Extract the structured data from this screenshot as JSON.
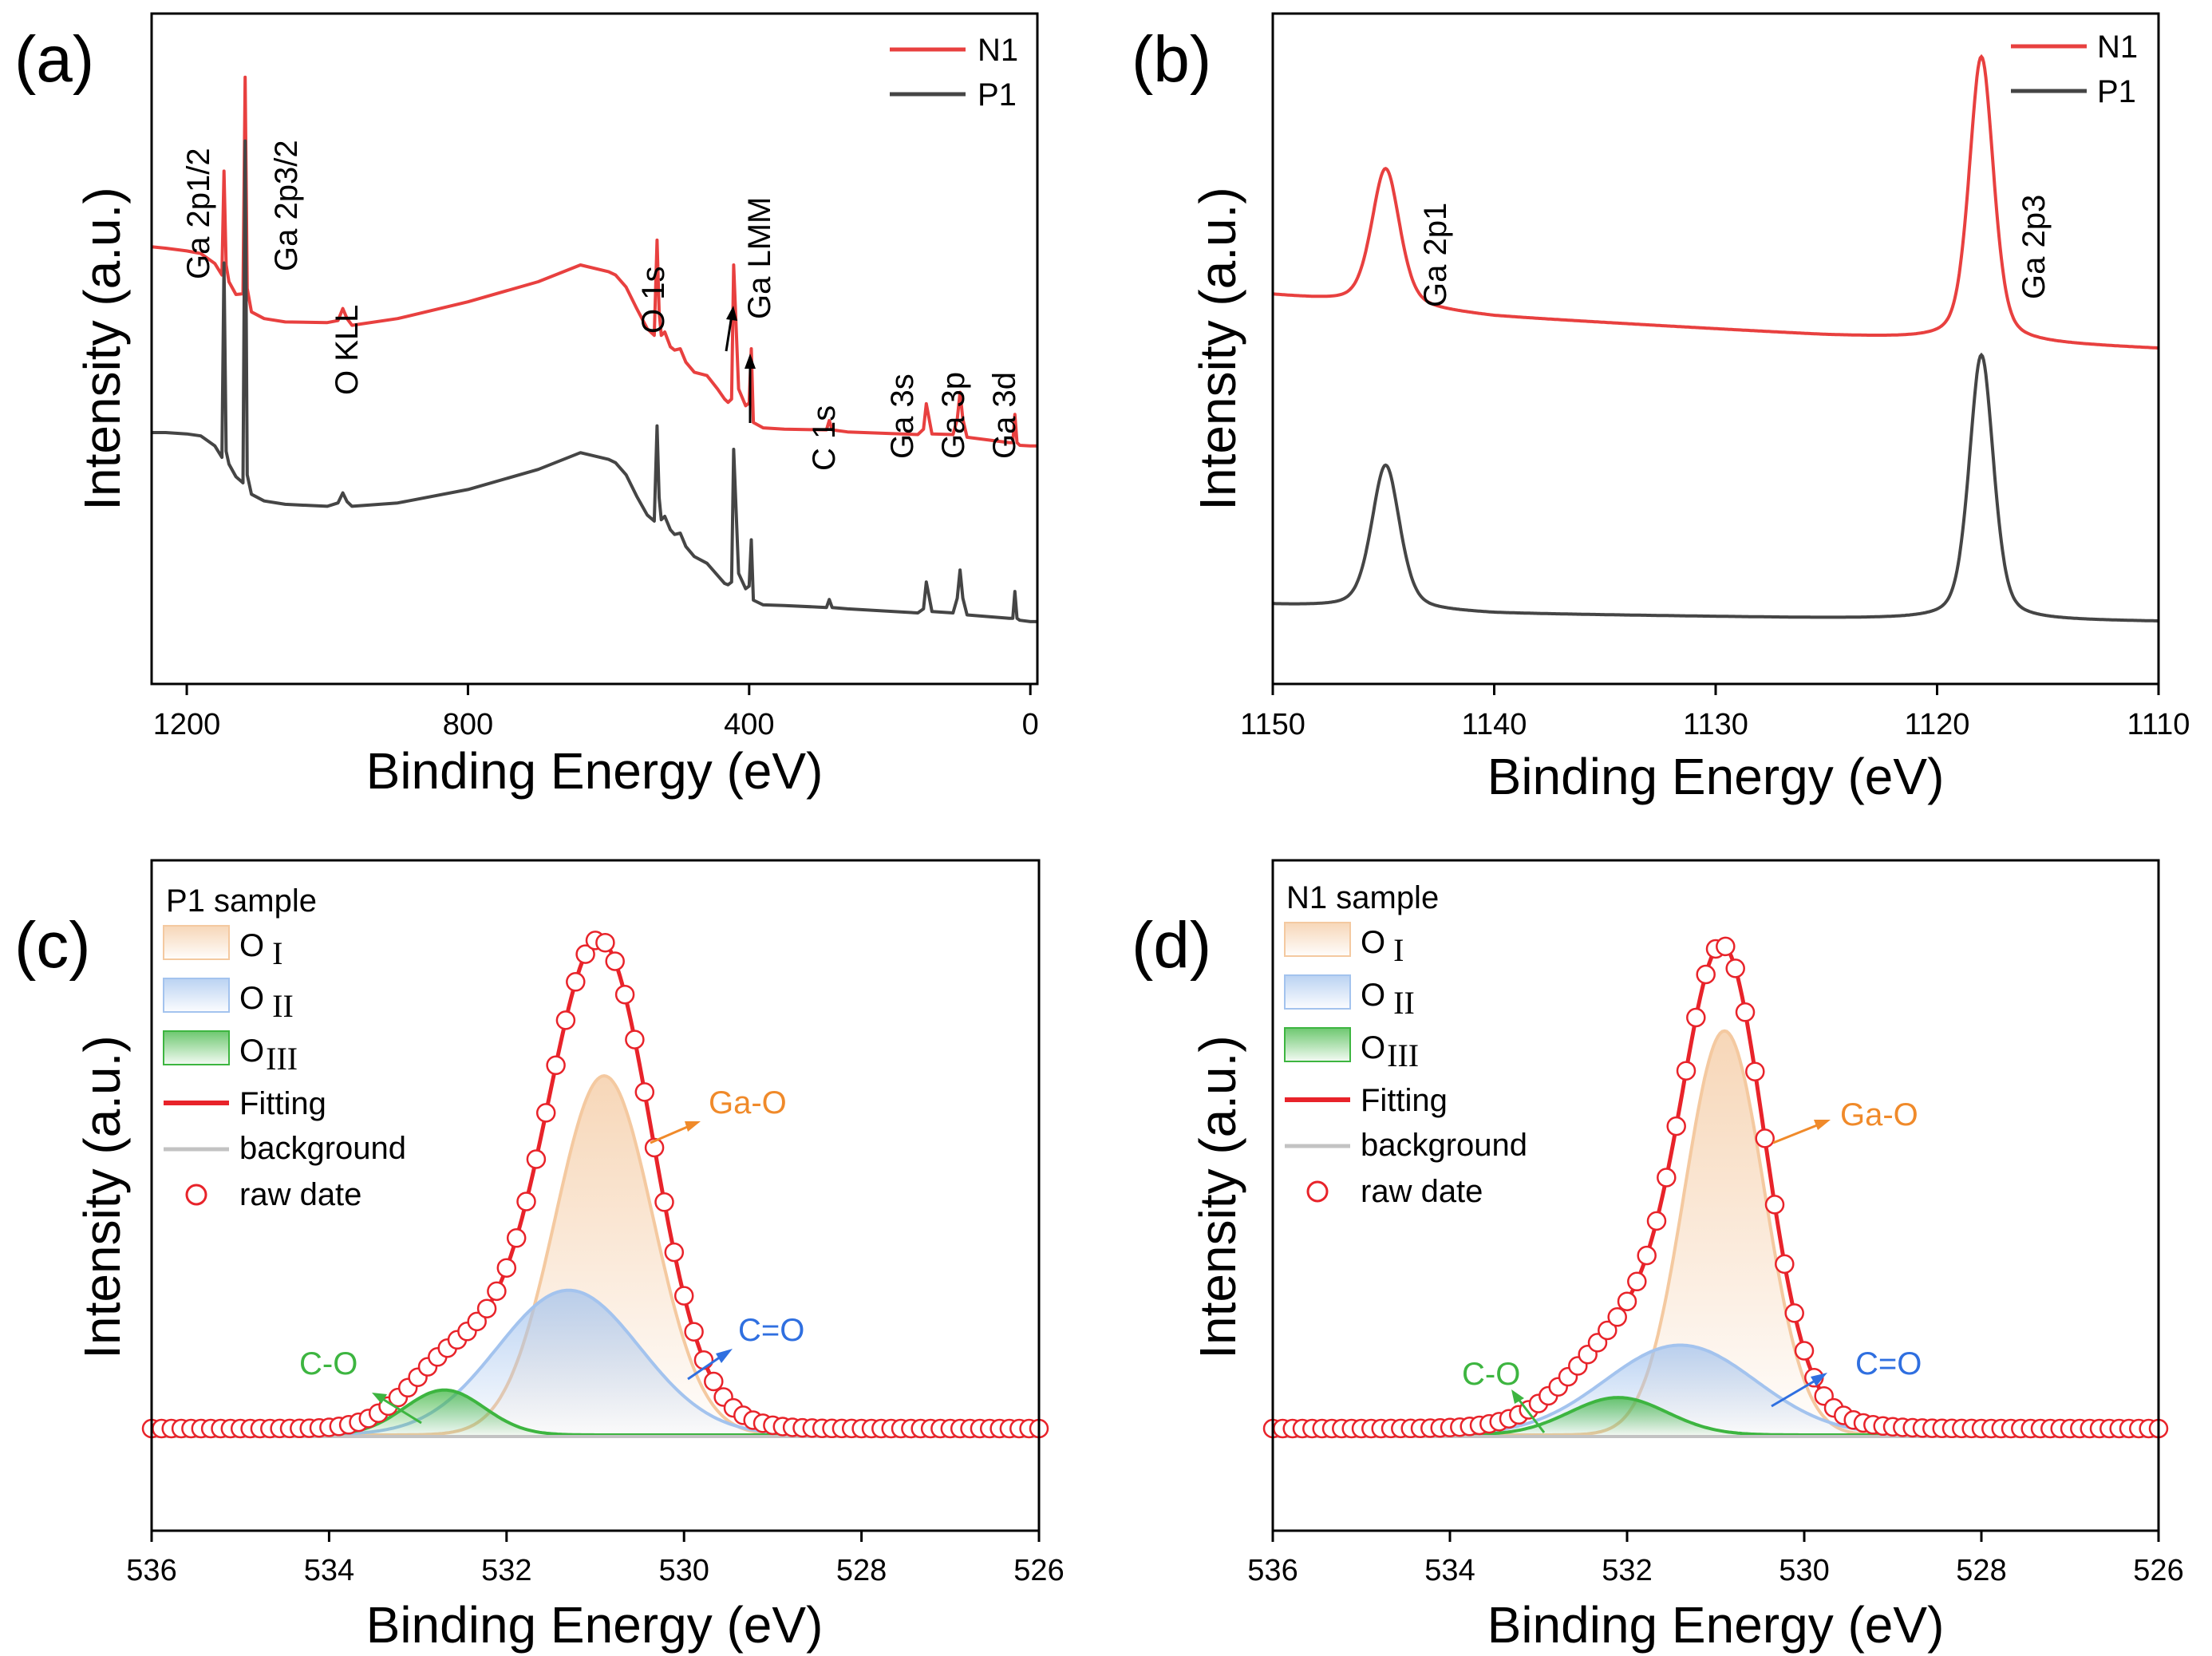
{
  "chart_data": [
    {
      "type": "line",
      "panel_label": "(a)",
      "title": "",
      "xlabel": "Binding Energy (eV)",
      "ylabel": "Intensity (a.u.)",
      "xlim": [
        1250,
        -10
      ],
      "xticks": [
        1200,
        800,
        400,
        0
      ],
      "xtick_labels": [
        "1200",
        "800",
        "400",
        "0"
      ],
      "legend": {
        "position": "top-right",
        "entries": [
          {
            "name": "N1",
            "color": "#e8403f"
          },
          {
            "name": "P1",
            "color": "#454545"
          }
        ]
      },
      "series": [
        {
          "name": "N1",
          "color": "#e8403f",
          "x": [
            1250,
            1230,
            1200,
            1180,
            1160,
            1150,
            1147,
            1144,
            1140,
            1130,
            1120,
            1117,
            1114,
            1108,
            1090,
            1060,
            1000,
            985,
            978,
            972,
            965,
            900,
            800,
            700,
            640,
            600,
            590,
            575,
            560,
            545,
            535,
            531,
            528,
            525,
            520,
            512,
            506,
            498,
            490,
            478,
            460,
            445,
            435,
            430,
            425,
            422,
            415,
            405,
            400,
            397,
            394,
            380,
            350,
            290,
            286,
            282,
            260,
            160,
            152,
            148,
            140,
            110,
            104,
            100,
            96,
            90,
            30,
            25,
            22,
            19,
            15,
            0,
            -10
          ],
          "y": [
            0.652,
            0.65,
            0.646,
            0.642,
            0.627,
            0.61,
            0.765,
            0.625,
            0.6,
            0.581,
            0.582,
            0.905,
            0.59,
            0.555,
            0.545,
            0.54,
            0.539,
            0.542,
            0.56,
            0.545,
            0.535,
            0.545,
            0.57,
            0.6,
            0.625,
            0.615,
            0.61,
            0.592,
            0.56,
            0.53,
            0.52,
            0.662,
            0.555,
            0.52,
            0.525,
            0.503,
            0.498,
            0.5,
            0.48,
            0.465,
            0.46,
            0.44,
            0.425,
            0.42,
            0.425,
            0.625,
            0.44,
            0.415,
            0.419,
            0.5,
            0.39,
            0.382,
            0.38,
            0.379,
            0.393,
            0.379,
            0.376,
            0.372,
            0.38,
            0.418,
            0.373,
            0.372,
            0.395,
            0.435,
            0.395,
            0.368,
            0.36,
            0.36,
            0.402,
            0.36,
            0.356,
            0.355,
            0.355
          ]
        },
        {
          "name": "P1",
          "color": "#454545",
          "x": [
            1250,
            1230,
            1200,
            1180,
            1160,
            1150,
            1147,
            1144,
            1140,
            1130,
            1120,
            1117,
            1114,
            1108,
            1090,
            1060,
            1000,
            985,
            978,
            972,
            965,
            900,
            800,
            700,
            640,
            600,
            590,
            575,
            560,
            545,
            535,
            531,
            528,
            525,
            520,
            512,
            506,
            498,
            490,
            478,
            460,
            445,
            435,
            430,
            425,
            422,
            415,
            405,
            400,
            397,
            394,
            380,
            350,
            290,
            286,
            282,
            260,
            160,
            152,
            148,
            140,
            110,
            104,
            100,
            96,
            90,
            30,
            25,
            22,
            19,
            15,
            0,
            -10
          ],
          "y": [
            0.375,
            0.375,
            0.373,
            0.37,
            0.355,
            0.338,
            0.628,
            0.347,
            0.328,
            0.309,
            0.3,
            0.81,
            0.312,
            0.283,
            0.273,
            0.268,
            0.265,
            0.27,
            0.285,
            0.272,
            0.265,
            0.27,
            0.29,
            0.32,
            0.345,
            0.335,
            0.33,
            0.312,
            0.28,
            0.252,
            0.243,
            0.385,
            0.278,
            0.245,
            0.25,
            0.23,
            0.223,
            0.225,
            0.205,
            0.19,
            0.18,
            0.162,
            0.15,
            0.148,
            0.152,
            0.35,
            0.165,
            0.142,
            0.146,
            0.215,
            0.125,
            0.118,
            0.117,
            0.114,
            0.126,
            0.114,
            0.112,
            0.106,
            0.112,
            0.152,
            0.108,
            0.106,
            0.128,
            0.17,
            0.128,
            0.103,
            0.098,
            0.098,
            0.138,
            0.098,
            0.095,
            0.093,
            0.093
          ]
        }
      ],
      "annotations": [
        "Ga 2p1/2",
        "Ga 2p3/2",
        "O KLL",
        "O 1s",
        "Ga LMM",
        "C 1s",
        "Ga 3s",
        "Ga 3p",
        "Ga 3d"
      ]
    },
    {
      "type": "line",
      "panel_label": "(b)",
      "title": "",
      "xlabel": "Binding Energy (eV)",
      "ylabel": "Intensity (a.u.)",
      "xlim": [
        1150,
        1110
      ],
      "xticks": [
        1150,
        1140,
        1130,
        1120,
        1110
      ],
      "xtick_labels": [
        "1150",
        "1140",
        "1130",
        "1120",
        "1110"
      ],
      "legend": {
        "position": "top-right",
        "entries": [
          {
            "name": "N1",
            "color": "#e8403f"
          },
          {
            "name": "P1",
            "color": "#454545"
          }
        ]
      },
      "series": [
        {
          "name": "N1",
          "color": "#e8403f",
          "baseline": [
            0.58,
            0.548,
            0.52,
            0.5
          ],
          "peaks": [
            {
              "center": 1144.9,
              "height": 0.205,
              "width": 0.75
            },
            {
              "center": 1118.0,
              "height": 0.425,
              "width": 0.65
            }
          ]
        },
        {
          "name": "P1",
          "color": "#454545",
          "baseline": [
            0.118,
            0.105,
            0.098,
            0.093
          ],
          "peaks": [
            {
              "center": 1144.9,
              "height": 0.215,
              "width": 0.75
            },
            {
              "center": 1118.0,
              "height": 0.395,
              "width": 0.65
            }
          ]
        }
      ],
      "annotations": [
        "Ga 2p1",
        "Ga 2p3"
      ]
    },
    {
      "type": "area",
      "panel_label": "(c)",
      "title": "P1 sample",
      "xlabel": "Binding Energy (eV)",
      "ylabel": "Intensity (a.u.)",
      "xlim": [
        536,
        526
      ],
      "xticks": [
        536,
        534,
        532,
        530,
        528,
        526
      ],
      "xtick_labels": [
        "536",
        "534",
        "532",
        "530",
        "528",
        "526"
      ],
      "background": 0.0,
      "components": [
        {
          "name": "O I",
          "center": 530.9,
          "height": 0.72,
          "sigma": 0.55,
          "color": "#f4c9a0"
        },
        {
          "name": "O II",
          "center": 531.3,
          "height": 0.29,
          "sigma": 0.8,
          "color": "#a3c3ee"
        },
        {
          "name": "O III",
          "center": 532.7,
          "height": 0.09,
          "sigma": 0.45,
          "color": "#3db540"
        }
      ],
      "legend": {
        "position": "top-left",
        "entries": [
          "P1 sample",
          "O",
          "O",
          "O",
          "Fitting",
          "background",
          "raw date"
        ],
        "subscripts": [
          "I",
          "II",
          "III"
        ]
      },
      "annotations": [
        {
          "text": "Ga-O",
          "color": "#f08a2a"
        },
        {
          "text": "C=O",
          "color": "#2f6fe0"
        },
        {
          "text": "C-O",
          "color": "#3db540"
        }
      ]
    },
    {
      "type": "area",
      "panel_label": "(d)",
      "title": "N1 sample",
      "xlabel": "Binding Energy (eV)",
      "ylabel": "Intensity (a.u.)",
      "xlim": [
        536,
        526
      ],
      "xticks": [
        536,
        534,
        532,
        530,
        528,
        526
      ],
      "xtick_labels": [
        "536",
        "534",
        "532",
        "530",
        "528",
        "526"
      ],
      "background": 0.0,
      "components": [
        {
          "name": "O I",
          "center": 530.9,
          "height": 0.81,
          "sigma": 0.45,
          "color": "#f4c9a0"
        },
        {
          "name": "O II",
          "center": 531.4,
          "height": 0.18,
          "sigma": 0.85,
          "color": "#a3c3ee"
        },
        {
          "name": "O III",
          "center": 532.1,
          "height": 0.075,
          "sigma": 0.55,
          "color": "#3db540"
        }
      ],
      "legend": {
        "position": "top-left",
        "entries": [
          "N1 sample",
          "O",
          "O",
          "O",
          "Fitting",
          "background",
          "raw date"
        ],
        "subscripts": [
          "I",
          "II",
          "III"
        ]
      },
      "annotations": [
        {
          "text": "Ga-O",
          "color": "#f08a2a"
        },
        {
          "text": "C=O",
          "color": "#2f6fe0"
        },
        {
          "text": "C-O",
          "color": "#3db540"
        }
      ]
    }
  ]
}
